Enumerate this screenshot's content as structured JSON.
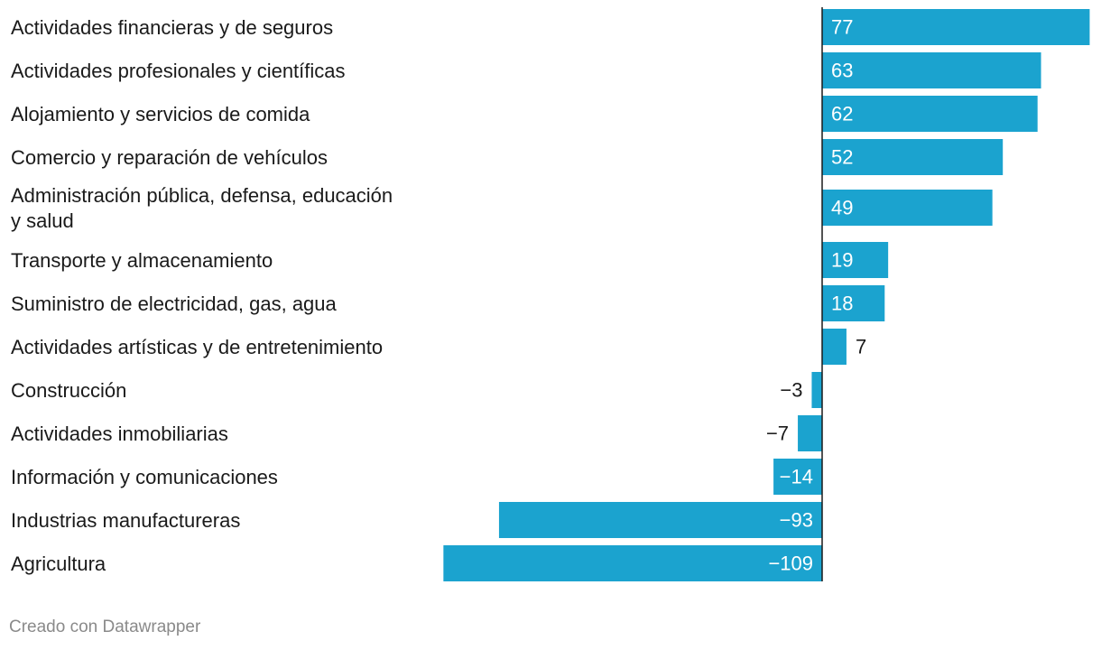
{
  "chart_data": {
    "type": "bar",
    "orientation": "horizontal",
    "title": "",
    "xlabel": "",
    "ylabel": "",
    "xlim": [
      -109,
      77
    ],
    "grid": false,
    "legend": "none",
    "bar_color": "#1ba3cf",
    "categories": [
      [
        "Actividades financieras y de seguros"
      ],
      [
        "Actividades profesionales y científicas"
      ],
      [
        "Alojamiento y servicios de comida"
      ],
      [
        "Comercio y reparación de vehículos"
      ],
      [
        "Administración pública, defensa, educación",
        "y salud"
      ],
      [
        "Transporte y almacenamiento"
      ],
      [
        "Suministro de electricidad, gas, agua"
      ],
      [
        "Actividades artísticas y de entretenimiento"
      ],
      [
        "Construcción"
      ],
      [
        "Actividades inmobiliarias"
      ],
      [
        "Información y comunicaciones"
      ],
      [
        "Industrias manufactureras"
      ],
      [
        "Agricultura"
      ]
    ],
    "values": [
      77,
      63,
      62,
      52,
      49,
      19,
      18,
      7,
      -3,
      -7,
      -14,
      -93,
      -109
    ],
    "value_labels": [
      "77",
      "63",
      "62",
      "52",
      "49",
      "19",
      "18",
      "7",
      "−3",
      "−7",
      "−14",
      "−93",
      "−109"
    ]
  },
  "footer": {
    "credit": "Creado con Datawrapper"
  }
}
